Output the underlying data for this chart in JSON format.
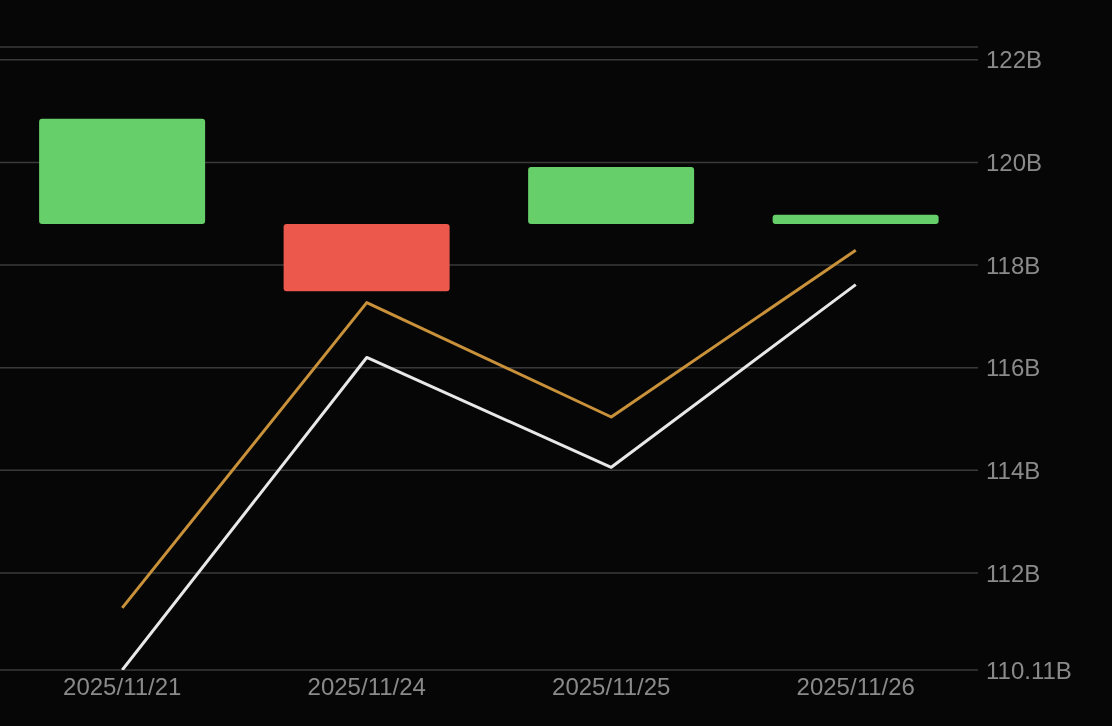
{
  "chart_data": {
    "type": "bar",
    "categories": [
      "2025/11/21",
      "2025/11/24",
      "2025/11/25",
      "2025/11/26"
    ],
    "series": [
      {
        "base": [
          118.8,
          118.8,
          118.8,
          118.8
        ],
        "values": [
          2.05,
          -1.31,
          1.11,
          0.18
        ],
        "colors": [
          "#66cf6a",
          "#ec584b",
          "#66cf6a",
          "#66cf6a"
        ]
      },
      {
        "type": "line",
        "color": "#c8913a",
        "values": [
          111.32,
          117.27,
          115.04,
          118.29
        ]
      },
      {
        "type": "line",
        "color": "#e8e8e8",
        "values": [
          110.11,
          116.2,
          114.06,
          117.62
        ]
      }
    ],
    "ylim": [
      110.11,
      122.25
    ],
    "yticks": [
      {
        "value": 110.11,
        "label": "110.11B"
      },
      {
        "value": 112,
        "label": "112B"
      },
      {
        "value": 114,
        "label": "114B"
      },
      {
        "value": 116,
        "label": "116B"
      },
      {
        "value": 118,
        "label": "118B"
      },
      {
        "value": 120,
        "label": "120B"
      },
      {
        "value": 122,
        "label": "122B"
      }
    ],
    "grid": true,
    "marker": "none",
    "line_style": "solid"
  }
}
